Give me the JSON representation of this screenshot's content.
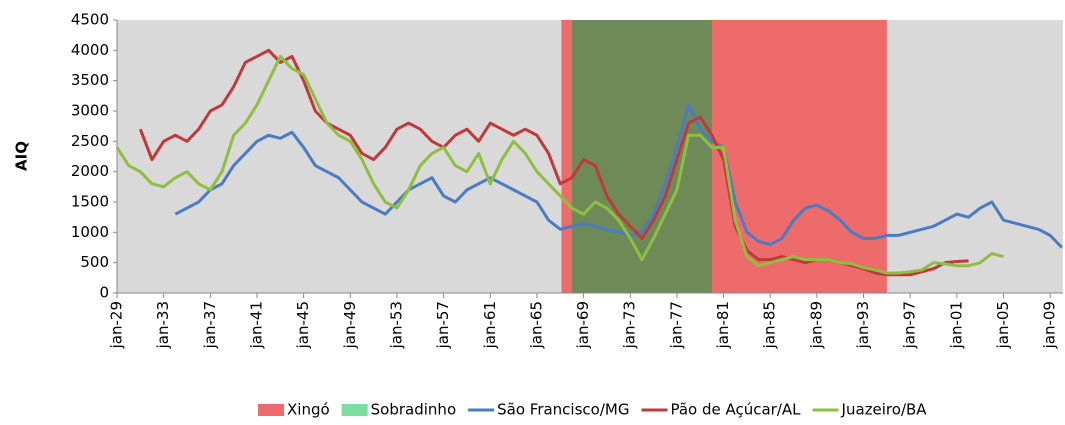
{
  "chart_data": {
    "type": "line",
    "ylabel": "AIQ",
    "xlim": [
      1929,
      2010.1
    ],
    "ylim": [
      0,
      4500
    ],
    "yticks": [
      0,
      500,
      1000,
      1500,
      2000,
      2500,
      3000,
      3500,
      4000,
      4500
    ],
    "xticks": [
      {
        "value": 1929,
        "label": "jan-29"
      },
      {
        "value": 1933,
        "label": "jan-33"
      },
      {
        "value": 1937,
        "label": "jan-37"
      },
      {
        "value": 1941,
        "label": "jan-41"
      },
      {
        "value": 1945,
        "label": "jan-45"
      },
      {
        "value": 1949,
        "label": "jan-49"
      },
      {
        "value": 1953,
        "label": "jan-53"
      },
      {
        "value": 1957,
        "label": "jan-57"
      },
      {
        "value": 1961,
        "label": "jan-61"
      },
      {
        "value": 1965,
        "label": "jan-65"
      },
      {
        "value": 1969,
        "label": "jan-69"
      },
      {
        "value": 1973,
        "label": "jan-73"
      },
      {
        "value": 1977,
        "label": "jan-77"
      },
      {
        "value": 1981,
        "label": "jan-81"
      },
      {
        "value": 1985,
        "label": "jan-85"
      },
      {
        "value": 1989,
        "label": "jan-89"
      },
      {
        "value": 1993,
        "label": "jan-93"
      },
      {
        "value": 1997,
        "label": "jan-97"
      },
      {
        "value": 2001,
        "label": "jan-01"
      },
      {
        "value": 2005,
        "label": "jan-05"
      },
      {
        "value": 2009,
        "label": "jan-09"
      }
    ],
    "background": "#d9d9d9",
    "bands": [
      {
        "name": "Xingó",
        "color": "#ee6b6b",
        "plot_color": "#ee6b6b",
        "x": [
          1967.1,
          1995.0
        ]
      },
      {
        "name": "Sobradinho",
        "color": "#7ddc9f",
        "plot_color": "#6e8a58",
        "x": [
          1968.0,
          1980.0
        ]
      }
    ],
    "series": [
      {
        "name": "São Francisco/MG",
        "color": "#4a7cc4",
        "x": [
          1934,
          1935,
          1936,
          1937,
          1938,
          1939,
          1940,
          1941,
          1942,
          1943,
          1944,
          1945,
          1946,
          1947,
          1948,
          1949,
          1950,
          1951,
          1952,
          1953,
          1954,
          1955,
          1956,
          1957,
          1958,
          1959,
          1960,
          1961,
          1962,
          1963,
          1964,
          1965,
          1966,
          1967,
          1968,
          1969,
          1970,
          1971,
          1972,
          1973,
          1974,
          1975,
          1976,
          1977,
          1978,
          1979,
          1980,
          1981,
          1982,
          1983,
          1984,
          1985,
          1986,
          1987,
          1988,
          1989,
          1990,
          1991,
          1992,
          1993,
          1994,
          1995,
          1996,
          1997,
          1998,
          1999,
          2000,
          2001,
          2002,
          2003,
          2004,
          2005,
          2006,
          2007,
          2008,
          2009,
          2010
        ],
        "values": [
          1300,
          1400,
          1500,
          1700,
          1800,
          2100,
          2300,
          2500,
          2600,
          2550,
          2650,
          2400,
          2100,
          2000,
          1900,
          1700,
          1500,
          1400,
          1300,
          1500,
          1700,
          1800,
          1900,
          1600,
          1500,
          1700,
          1800,
          1900,
          1800,
          1700,
          1600,
          1500,
          1200,
          1050,
          1100,
          1150,
          1100,
          1050,
          1000,
          950,
          1000,
          1300,
          1800,
          2400,
          3100,
          2700,
          2500,
          2400,
          1500,
          1000,
          850,
          800,
          900,
          1200,
          1400,
          1450,
          1350,
          1200,
          1000,
          900,
          900,
          950,
          950,
          1000,
          1050,
          1100,
          1200,
          1300,
          1250,
          1400,
          1500,
          1200,
          1150,
          1100,
          1050,
          950,
          750
        ]
      },
      {
        "name": "Pão de Açúcar/AL",
        "color": "#c0393b",
        "x": [
          1931,
          1932,
          1933,
          1934,
          1935,
          1936,
          1937,
          1938,
          1939,
          1940,
          1941,
          1942,
          1943,
          1944,
          1945,
          1946,
          1947,
          1948,
          1949,
          1950,
          1951,
          1952,
          1953,
          1954,
          1955,
          1956,
          1957,
          1958,
          1959,
          1960,
          1961,
          1962,
          1963,
          1964,
          1965,
          1966,
          1967,
          1968,
          1969,
          1970,
          1971,
          1972,
          1973,
          1974,
          1975,
          1976,
          1977,
          1978,
          1979,
          1980,
          1981,
          1982,
          1983,
          1984,
          1985,
          1986,
          1987,
          1988,
          1989,
          1990,
          1991,
          1992,
          1993,
          1994,
          1995,
          1996,
          1997,
          1998,
          1999,
          2000,
          2001,
          2002
        ],
        "values": [
          2700,
          2200,
          2500,
          2600,
          2500,
          2700,
          3000,
          3100,
          3400,
          3800,
          3900,
          4000,
          3800,
          3900,
          3500,
          3000,
          2800,
          2700,
          2600,
          2300,
          2200,
          2400,
          2700,
          2800,
          2700,
          2500,
          2400,
          2600,
          2700,
          2500,
          2800,
          2700,
          2600,
          2700,
          2600,
          2300,
          1800,
          1900,
          2200,
          2100,
          1600,
          1300,
          1100,
          900,
          1200,
          1600,
          2200,
          2800,
          2900,
          2600,
          2200,
          1100,
          700,
          550,
          550,
          600,
          550,
          500,
          550,
          550,
          500,
          450,
          400,
          330,
          300,
          300,
          300,
          350,
          400,
          500,
          520,
          530
        ]
      },
      {
        "name": "Juazeiro/BA",
        "color": "#8fbf3f",
        "x": [
          1929,
          1930,
          1931,
          1932,
          1933,
          1934,
          1935,
          1936,
          1937,
          1938,
          1939,
          1940,
          1941,
          1942,
          1943,
          1944,
          1945,
          1946,
          1947,
          1948,
          1949,
          1950,
          1951,
          1952,
          1953,
          1954,
          1955,
          1956,
          1957,
          1958,
          1959,
          1960,
          1961,
          1962,
          1963,
          1964,
          1965,
          1966,
          1967,
          1968,
          1969,
          1970,
          1971,
          1972,
          1973,
          1974,
          1975,
          1976,
          1977,
          1978,
          1979,
          1980,
          1981,
          1982,
          1983,
          1984,
          1985,
          1986,
          1987,
          1988,
          1989,
          1990,
          1991,
          1992,
          1993,
          1994,
          1995,
          1996,
          1997,
          1998,
          1999,
          2000,
          2001,
          2002,
          2003,
          2004,
          2005
        ],
        "values": [
          2400,
          2100,
          2000,
          1800,
          1750,
          1900,
          2000,
          1800,
          1700,
          2000,
          2600,
          2800,
          3100,
          3500,
          3900,
          3700,
          3600,
          3200,
          2800,
          2600,
          2500,
          2200,
          1800,
          1500,
          1400,
          1700,
          2100,
          2300,
          2400,
          2100,
          2000,
          2300,
          1800,
          2200,
          2500,
          2300,
          2000,
          1800,
          1600,
          1400,
          1300,
          1500,
          1400,
          1200,
          900,
          550,
          900,
          1300,
          1700,
          2600,
          2600,
          2400,
          2400,
          1200,
          600,
          450,
          500,
          550,
          600,
          550,
          550,
          550,
          500,
          480,
          420,
          380,
          330,
          330,
          350,
          380,
          500,
          480,
          450,
          450,
          500,
          650,
          600
        ]
      }
    ]
  }
}
